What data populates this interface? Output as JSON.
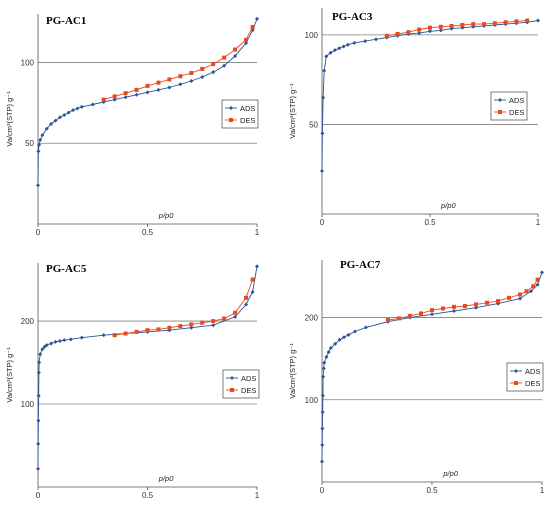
{
  "colors": {
    "ads": "#2a5599",
    "des": "#e8491d",
    "grid": "#7f7f7f",
    "axis": "#555555"
  },
  "chart_data": [
    {
      "type": "line",
      "title": "PG-AC1",
      "xlabel": "p/p0",
      "ylabel": "Va/cm³(STP) g⁻¹",
      "xlim": [
        0,
        1
      ],
      "ylim": [
        0,
        130
      ],
      "x_ticks": [
        "0",
        "0.5",
        "1"
      ],
      "y_ticks": [
        "50",
        "100"
      ],
      "legend": [
        "ADS",
        "DES"
      ],
      "series": [
        {
          "name": "ADS",
          "marker": "diamond",
          "x": [
            0.0,
            0.002,
            0.005,
            0.01,
            0.02,
            0.04,
            0.06,
            0.08,
            0.1,
            0.12,
            0.14,
            0.16,
            0.18,
            0.2,
            0.25,
            0.3,
            0.35,
            0.4,
            0.45,
            0.5,
            0.55,
            0.6,
            0.65,
            0.7,
            0.75,
            0.8,
            0.85,
            0.9,
            0.95,
            0.98,
            1.0
          ],
          "y": [
            24,
            45,
            49,
            52,
            55,
            59,
            62,
            64,
            66,
            67.5,
            69,
            70.5,
            71.5,
            72.5,
            74,
            75.5,
            77,
            78.5,
            80,
            81.5,
            83,
            84.5,
            86.5,
            88.5,
            91,
            94,
            98,
            104,
            112,
            120,
            127
          ]
        },
        {
          "name": "DES",
          "marker": "square",
          "x": [
            0.3,
            0.35,
            0.4,
            0.45,
            0.5,
            0.55,
            0.6,
            0.65,
            0.7,
            0.75,
            0.8,
            0.85,
            0.9,
            0.95,
            0.98
          ],
          "y": [
            77,
            79,
            81,
            83,
            85.5,
            87.5,
            89.5,
            91.5,
            93.5,
            96,
            99,
            103,
            108,
            114,
            122
          ]
        }
      ]
    },
    {
      "type": "line",
      "title": "PG-AC3",
      "xlabel": "p/p0",
      "ylabel": "Va/cm³(STP) g⁻¹",
      "xlim": [
        0,
        1
      ],
      "ylim": [
        0,
        115
      ],
      "x_ticks": [
        "0",
        "0.5",
        "1"
      ],
      "y_ticks": [
        "50",
        "100"
      ],
      "legend": [
        "ADS",
        "DES"
      ],
      "series": [
        {
          "name": "ADS",
          "marker": "diamond",
          "x": [
            0.0,
            0.002,
            0.005,
            0.01,
            0.02,
            0.04,
            0.06,
            0.08,
            0.1,
            0.12,
            0.15,
            0.2,
            0.25,
            0.3,
            0.35,
            0.4,
            0.45,
            0.5,
            0.55,
            0.6,
            0.65,
            0.7,
            0.75,
            0.8,
            0.85,
            0.9,
            0.95,
            1.0
          ],
          "y": [
            24,
            45,
            65,
            80,
            88,
            90,
            91.5,
            92.5,
            93.5,
            94.5,
            95.5,
            96.5,
            97.5,
            98.5,
            99.5,
            100.5,
            101,
            102,
            102.5,
            103.5,
            104,
            104.5,
            105,
            105.5,
            106,
            106.5,
            107,
            108
          ]
        },
        {
          "name": "DES",
          "marker": "square",
          "x": [
            0.3,
            0.35,
            0.4,
            0.45,
            0.5,
            0.55,
            0.6,
            0.65,
            0.7,
            0.75,
            0.8,
            0.85,
            0.9,
            0.95
          ],
          "y": [
            99.5,
            100.5,
            101.5,
            103,
            104,
            104.5,
            105,
            105.5,
            106,
            106,
            106.5,
            107,
            107.5,
            108
          ]
        }
      ]
    },
    {
      "type": "line",
      "title": "PG-AC5",
      "xlabel": "p/p0",
      "ylabel": "Va/cm³(STP) g⁻¹",
      "xlim": [
        0,
        1
      ],
      "ylim": [
        0,
        270
      ],
      "x_ticks": [
        "0",
        "0.5",
        "1"
      ],
      "y_ticks": [
        "100",
        "200"
      ],
      "legend": [
        "ADS",
        "DES"
      ],
      "series": [
        {
          "name": "ADS",
          "marker": "diamond",
          "x": [
            0.0,
            0.001,
            0.002,
            0.003,
            0.004,
            0.005,
            0.01,
            0.02,
            0.03,
            0.04,
            0.06,
            0.08,
            0.1,
            0.12,
            0.15,
            0.2,
            0.3,
            0.4,
            0.5,
            0.6,
            0.7,
            0.8,
            0.9,
            0.95,
            0.98,
            1.0
          ],
          "y": [
            22,
            52,
            80,
            110,
            138,
            150,
            160,
            166,
            169,
            171,
            173,
            175,
            176,
            177,
            178,
            180,
            183,
            185,
            187,
            189,
            192,
            195,
            205,
            220,
            235,
            266
          ]
        },
        {
          "name": "DES",
          "marker": "square",
          "x": [
            0.35,
            0.4,
            0.45,
            0.5,
            0.55,
            0.6,
            0.65,
            0.7,
            0.75,
            0.8,
            0.85,
            0.9,
            0.95,
            0.98
          ],
          "y": [
            183,
            185,
            187,
            189,
            190,
            192,
            194,
            196,
            198,
            200,
            203,
            210,
            228,
            250
          ]
        }
      ]
    },
    {
      "type": "line",
      "title": "PG-AC7",
      "xlabel": "p/p0",
      "ylabel": "Va/cm³(STP) g⁻¹",
      "xlim": [
        0,
        1
      ],
      "ylim": [
        0,
        270
      ],
      "x_ticks": [
        "0",
        "0.5",
        "1"
      ],
      "y_ticks": [
        "100",
        "200"
      ],
      "legend": [
        "ADS",
        "DES"
      ],
      "series": [
        {
          "name": "ADS",
          "marker": "diamond",
          "x": [
            0.0,
            0.001,
            0.002,
            0.003,
            0.004,
            0.005,
            0.008,
            0.01,
            0.02,
            0.03,
            0.04,
            0.06,
            0.08,
            0.1,
            0.12,
            0.15,
            0.2,
            0.3,
            0.4,
            0.5,
            0.6,
            0.7,
            0.8,
            0.9,
            0.95,
            0.98,
            1.0
          ],
          "y": [
            25,
            45,
            65,
            85,
            105,
            128,
            138,
            145,
            152,
            158,
            163,
            168,
            173,
            176,
            179,
            183,
            188,
            195,
            200,
            204,
            208,
            212,
            217,
            223,
            232,
            240,
            255
          ]
        },
        {
          "name": "DES",
          "marker": "square",
          "x": [
            0.3,
            0.35,
            0.4,
            0.45,
            0.5,
            0.55,
            0.6,
            0.65,
            0.7,
            0.75,
            0.8,
            0.85,
            0.9,
            0.93,
            0.96,
            0.98
          ],
          "y": [
            197,
            199,
            202,
            205,
            209,
            211,
            213,
            214,
            216,
            218,
            220,
            224,
            228,
            232,
            238,
            246
          ]
        }
      ]
    }
  ]
}
